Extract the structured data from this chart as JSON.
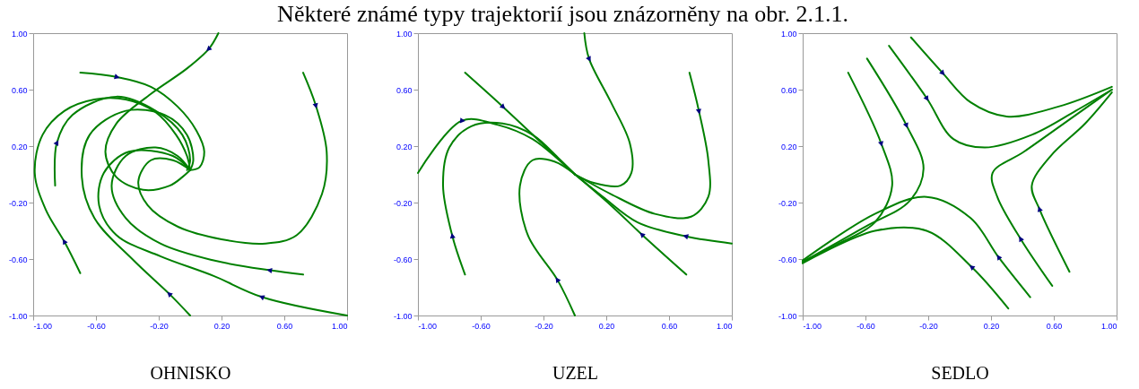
{
  "chart_data": [
    {
      "type": "line",
      "title": "Některé známé typy trajektorií jsou znázorněny na obr. 2.1.1.",
      "xlabel": "OHNISKO",
      "xlim": [
        -1,
        1
      ],
      "ylim": [
        -1,
        1
      ],
      "xticks": [
        {
          "value": -1,
          "label": "-1.00"
        },
        {
          "value": -0.6,
          "label": "-0.60"
        },
        {
          "value": -0.2,
          "label": "-0.20"
        },
        {
          "value": 0.2,
          "label": "0.20"
        },
        {
          "value": 0.6,
          "label": "0.60"
        },
        {
          "value": 1,
          "label": "1.00"
        }
      ],
      "yticks": [
        {
          "value": -1,
          "label": "-1.00"
        },
        {
          "value": -0.6,
          "label": "-0.60"
        },
        {
          "value": -0.2,
          "label": "-0.20"
        },
        {
          "value": 0.2,
          "label": "0.20"
        },
        {
          "value": 0.6,
          "label": "0.60"
        },
        {
          "value": 1,
          "label": "1.00"
        }
      ],
      "series": [
        {
          "color": "#008000",
          "x": [
            -0.7,
            -0.8,
            -0.92,
            -0.99,
            -0.94,
            -0.8,
            -0.61,
            -0.41,
            -0.22,
            -0.09,
            -0.02,
            0
          ],
          "values": [
            -0.7,
            -0.48,
            -0.25,
            0.01,
            0.28,
            0.45,
            0.53,
            0.53,
            0.44,
            0.28,
            0.13,
            0.03
          ]
        },
        {
          "color": "#008000",
          "x": [
            -0.7,
            -0.47,
            -0.25,
            -0.08,
            0.04,
            0.09,
            0.06,
            0
          ],
          "values": [
            0.72,
            0.69,
            0.62,
            0.48,
            0.31,
            0.16,
            0.05,
            0.03
          ]
        },
        {
          "color": "#008000",
          "x": [
            -0.86,
            -0.85,
            -0.75,
            -0.47,
            -0.22,
            -0.05,
            0,
            -0.02
          ],
          "values": [
            -0.08,
            0.22,
            0.42,
            0.55,
            0.45,
            0.28,
            0.1,
            0.03
          ]
        },
        {
          "color": "#008000",
          "x": [
            0.18,
            0.12,
            -0.02,
            -0.25,
            -0.47,
            -0.54,
            -0.47,
            -0.3,
            -0.13,
            -0.05,
            0
          ],
          "values": [
            1.0,
            0.89,
            0.75,
            0.57,
            0.36,
            0.16,
            -0.02,
            -0.11,
            -0.08,
            -0.02,
            0.03
          ]
        },
        {
          "color": "#008000",
          "x": [
            0.72,
            0.8,
            0.87,
            0.84,
            0.68,
            0.48,
            0.2,
            -0.08,
            -0.27,
            -0.33,
            -0.25,
            -0.11,
            0
          ],
          "values": [
            0.72,
            0.49,
            0.16,
            -0.14,
            -0.43,
            -0.49,
            -0.46,
            -0.37,
            -0.22,
            -0.05,
            0.1,
            0.1,
            0.03
          ]
        },
        {
          "color": "#008000",
          "x": [
            0.72,
            0.51,
            0.15,
            -0.19,
            -0.41,
            -0.5,
            -0.41,
            -0.22,
            -0.08,
            0
          ],
          "values": [
            -0.71,
            -0.68,
            -0.61,
            -0.49,
            -0.31,
            -0.08,
            0.13,
            0.19,
            0.13,
            0.03
          ]
        },
        {
          "color": "#008000",
          "x": [
            1.0,
            0.46,
            0.15,
            -0.19,
            -0.47,
            -0.58,
            -0.55,
            -0.39,
            -0.11,
            0
          ],
          "values": [
            -1.0,
            -0.87,
            -0.72,
            -0.58,
            -0.43,
            -0.22,
            0.01,
            0.16,
            0.13,
            0.03
          ]
        },
        {
          "color": "#008000",
          "x": [
            0,
            -0.13,
            -0.36,
            -0.61,
            -0.69,
            -0.64,
            -0.41,
            -0.16,
            -0.02,
            0.02,
            0
          ],
          "values": [
            -1.0,
            -0.85,
            -0.61,
            -0.31,
            -0.02,
            0.28,
            0.45,
            0.42,
            0.28,
            0.1,
            0.03
          ]
        }
      ]
    },
    {
      "type": "line",
      "xlabel": "UZEL",
      "xlim": [
        -1,
        1
      ],
      "ylim": [
        -1,
        1
      ],
      "xticks": [
        {
          "value": -1,
          "label": "-1.00"
        },
        {
          "value": -0.6,
          "label": "-0.60"
        },
        {
          "value": -0.2,
          "label": "-0.20"
        },
        {
          "value": 0.2,
          "label": "0.20"
        },
        {
          "value": 0.6,
          "label": "0.60"
        },
        {
          "value": 1,
          "label": "1.00"
        }
      ],
      "yticks": [
        {
          "value": -1,
          "label": "-1.00"
        },
        {
          "value": -0.6,
          "label": "-0.60"
        },
        {
          "value": -0.2,
          "label": "-0.20"
        },
        {
          "value": 0.2,
          "label": "0.20"
        },
        {
          "value": 0.6,
          "label": "0.60"
        },
        {
          "value": 1,
          "label": "1.00"
        }
      ],
      "series": [
        {
          "color": "#008000",
          "x": [
            -0.7,
            -0.78,
            -0.84,
            -0.8,
            -0.66,
            -0.46,
            -0.27,
            -0.1,
            0
          ],
          "values": [
            -0.71,
            -0.44,
            -0.08,
            0.19,
            0.34,
            0.36,
            0.28,
            0.11,
            0
          ]
        },
        {
          "color": "#008000",
          "x": [
            -1.0,
            -0.72,
            -0.49,
            -0.27,
            -0.1,
            0
          ],
          "values": [
            0.01,
            0.38,
            0.35,
            0.25,
            0.1,
            0
          ]
        },
        {
          "color": "#008000",
          "x": [
            -0.7,
            -0.46,
            -0.21,
            0
          ],
          "values": [
            0.72,
            0.48,
            0.22,
            0
          ]
        },
        {
          "color": "#008000",
          "x": [
            0.06,
            0.09,
            0.23,
            0.35,
            0.36,
            0.29,
            0.12,
            0
          ],
          "values": [
            1.0,
            0.82,
            0.51,
            0.22,
            0.01,
            -0.08,
            -0.06,
            0
          ]
        },
        {
          "color": "#008000",
          "x": [
            0.73,
            0.79,
            0.85,
            0.85,
            0.74,
            0.51,
            0.23,
            0
          ],
          "values": [
            0.72,
            0.45,
            0.1,
            -0.16,
            -0.3,
            -0.28,
            -0.14,
            0
          ]
        },
        {
          "color": "#008000",
          "x": [
            1.0,
            0.71,
            0.4,
            0.18,
            0
          ],
          "values": [
            -0.49,
            -0.44,
            -0.34,
            -0.16,
            0
          ]
        },
        {
          "color": "#008000",
          "x": [
            0.71,
            0.43,
            0.23,
            0
          ],
          "values": [
            -0.71,
            -0.43,
            -0.22,
            0
          ]
        },
        {
          "color": "#008000",
          "x": [
            0,
            -0.11,
            -0.3,
            -0.35,
            -0.27,
            -0.13,
            0
          ],
          "values": [
            -1.0,
            -0.75,
            -0.43,
            -0.08,
            0.1,
            0.09,
            0
          ]
        }
      ]
    },
    {
      "type": "line",
      "xlabel": "SEDLO",
      "xlim": [
        -1,
        1
      ],
      "ylim": [
        -1,
        1
      ],
      "xticks": [
        {
          "value": -1,
          "label": "-1.00"
        },
        {
          "value": -0.6,
          "label": "-0.60"
        },
        {
          "value": -0.2,
          "label": "-0.20"
        },
        {
          "value": 0.2,
          "label": "0.20"
        },
        {
          "value": 0.6,
          "label": "0.60"
        },
        {
          "value": 1,
          "label": "1.00"
        }
      ],
      "yticks": [
        {
          "value": -1,
          "label": "-1.00"
        },
        {
          "value": -0.6,
          "label": "-0.60"
        },
        {
          "value": -0.2,
          "label": "-0.20"
        },
        {
          "value": 0.2,
          "label": "0.20"
        },
        {
          "value": 0.6,
          "label": "0.60"
        },
        {
          "value": 1,
          "label": "1.00"
        }
      ],
      "series": [
        {
          "color": "#008000",
          "x": [
            -0.71,
            -0.5,
            -0.43,
            -0.54,
            -0.77,
            -1.0
          ],
          "values": [
            0.72,
            0.22,
            -0.08,
            -0.34,
            -0.49,
            -0.62
          ]
        },
        {
          "color": "#008000",
          "x": [
            -0.59,
            -0.34,
            -0.23,
            -0.32,
            -0.6,
            -1.0
          ],
          "values": [
            0.82,
            0.35,
            0.04,
            -0.19,
            -0.37,
            -0.62
          ]
        },
        {
          "color": "#008000",
          "x": [
            -0.45,
            -0.21,
            -0.04,
            0.16,
            0.46,
            0.74,
            0.97
          ],
          "values": [
            0.91,
            0.54,
            0.25,
            0.19,
            0.28,
            0.45,
            0.6
          ]
        },
        {
          "color": "#008000",
          "x": [
            -0.31,
            -0.11,
            0.07,
            0.3,
            0.63,
            0.97
          ],
          "values": [
            0.97,
            0.72,
            0.51,
            0.41,
            0.48,
            0.62
          ]
        },
        {
          "color": "#008000",
          "x": [
            0.7,
            0.51,
            0.46,
            0.58,
            0.8,
            0.97
          ],
          "values": [
            -0.69,
            -0.25,
            -0.08,
            0.13,
            0.36,
            0.58
          ]
        },
        {
          "color": "#008000",
          "x": [
            0.59,
            0.39,
            0.24,
            0.21,
            0.41,
            0.74,
            0.97
          ],
          "values": [
            -0.79,
            -0.46,
            -0.16,
            0.01,
            0.16,
            0.42,
            0.6
          ]
        },
        {
          "color": "#008000",
          "x": [
            0.45,
            0.25,
            0.07,
            -0.21,
            -0.54,
            -1.0
          ],
          "values": [
            -0.87,
            -0.59,
            -0.31,
            -0.16,
            -0.28,
            -0.61
          ]
        },
        {
          "color": "#008000",
          "x": [
            0.31,
            0.08,
            -0.21,
            -0.54,
            -1.0
          ],
          "values": [
            -0.95,
            -0.66,
            -0.4,
            -0.4,
            -0.63
          ]
        }
      ]
    }
  ]
}
